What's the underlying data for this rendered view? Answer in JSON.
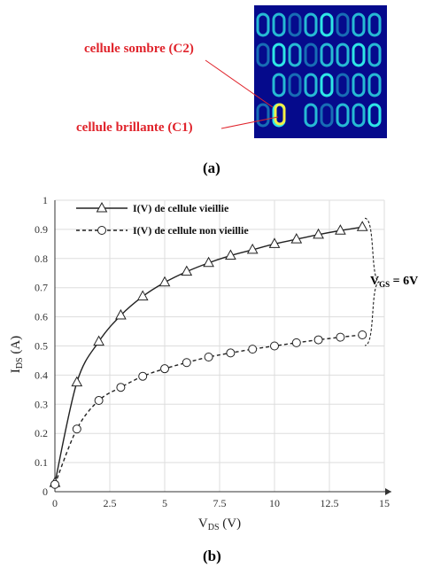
{
  "panel_a": {
    "caption": "(a)",
    "label_dark": "cellule sombre (C2)",
    "label_bright": "cellule brillante (C1)"
  },
  "panel_b": {
    "caption": "(b)",
    "vgs_label": "V",
    "vgs_sub": "GS",
    "vgs_value": " = 6V"
  },
  "colors": {
    "label_red": "#e0242c",
    "thermal_bg": "#050a8c",
    "thermal_cell": "#2ee6e6"
  },
  "chart_data": {
    "type": "line",
    "title": "",
    "xlabel": "V",
    "xlabel_sub": "DS",
    "xlabel_unit": " (V)",
    "ylabel": "I",
    "ylabel_sub": "DS",
    "ylabel_unit": " (A)",
    "xlim": [
      0,
      15
    ],
    "ylim": [
      0,
      1
    ],
    "xticks": [
      "0",
      "2.5",
      "5",
      "7.5",
      "10",
      "12.5",
      "15"
    ],
    "yticks": [
      "0",
      "0.1",
      "0.2",
      "0.3",
      "0.4",
      "0.5",
      "0.6",
      "0.7",
      "0.8",
      "0.9",
      "1"
    ],
    "grid": true,
    "legend_position": "top-left",
    "series": [
      {
        "name": "I(V) de cellule vieillie",
        "marker": "triangle",
        "line": "solid",
        "x": [
          0,
          1,
          2,
          3,
          4,
          5,
          6,
          7,
          8,
          9,
          10,
          11,
          12,
          13,
          14
        ],
        "y": [
          0.03,
          0.375,
          0.515,
          0.605,
          0.67,
          0.718,
          0.755,
          0.785,
          0.81,
          0.83,
          0.85,
          0.866,
          0.882,
          0.896,
          0.908
        ]
      },
      {
        "name": "I(V) de cellule non vieillie",
        "marker": "circle",
        "line": "dashed",
        "x": [
          0,
          1,
          2,
          3,
          4,
          5,
          6,
          7,
          8,
          9,
          10,
          11,
          12,
          13,
          14
        ],
        "y": [
          0.025,
          0.215,
          0.313,
          0.358,
          0.396,
          0.422,
          0.443,
          0.462,
          0.476,
          0.489,
          0.5,
          0.511,
          0.521,
          0.53,
          0.538
        ]
      }
    ]
  }
}
